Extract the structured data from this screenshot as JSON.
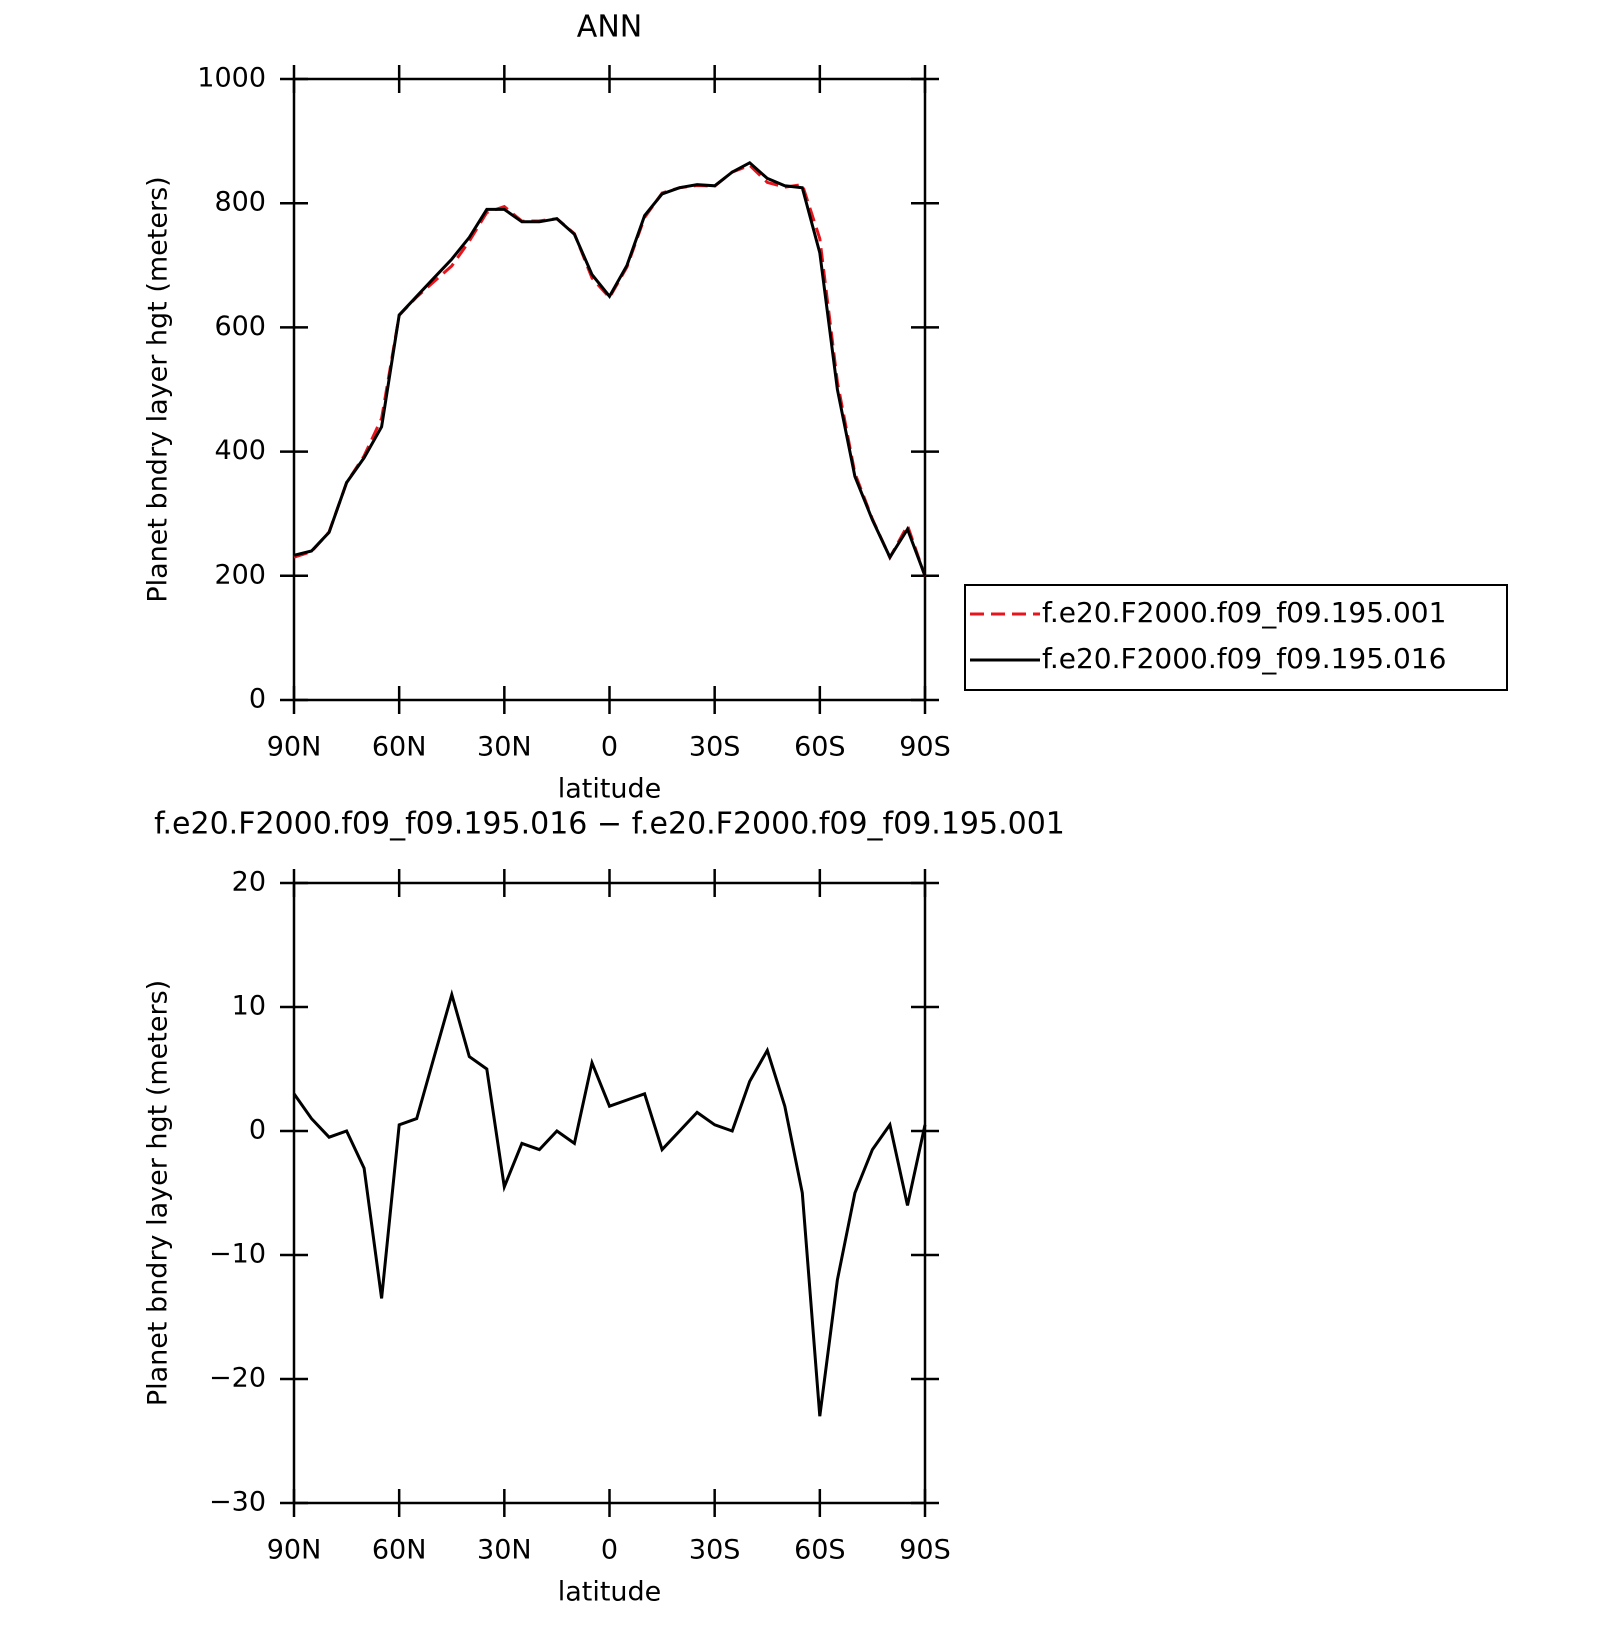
{
  "chart_data": [
    {
      "type": "line",
      "title": "ANN",
      "xlabel": "latitude",
      "ylabel": "Planet bndry layer hgt (meters)",
      "x": [
        90,
        85,
        80,
        75,
        70,
        65,
        60,
        55,
        50,
        45,
        40,
        35,
        30,
        25,
        20,
        15,
        10,
        5,
        0,
        -5,
        -10,
        -15,
        -20,
        -25,
        -30,
        -35,
        -40,
        -45,
        -50,
        -55,
        -60,
        -65,
        -70,
        -75,
        -80,
        -85,
        -90
      ],
      "series": [
        {
          "name": "f.e20.F2000.f09_f09.195.001",
          "color": "#e8141c",
          "style": "dashed",
          "values": [
            230,
            239,
            270.5,
            350,
            393,
            453.5,
            619.5,
            649,
            674,
            699,
            739,
            785,
            794.5,
            771,
            771.5,
            775,
            751,
            679.5,
            648,
            697.5,
            777,
            816.5,
            825,
            828.5,
            827.5,
            850,
            861,
            833.5,
            826,
            830,
            743,
            512,
            365,
            291.5,
            229.5,
            281,
            199.5
          ]
        },
        {
          "name": "f.e20.F2000.f09_f09.195.016",
          "color": "#000000",
          "style": "solid",
          "values": [
            233,
            240,
            270,
            350,
            390,
            440,
            620,
            650,
            680,
            710,
            745,
            790,
            790,
            770,
            770,
            775,
            750,
            685,
            650,
            700,
            780,
            815,
            825,
            830,
            828,
            850,
            865,
            840,
            828,
            825,
            720,
            500,
            360,
            290,
            230,
            275,
            200
          ]
        }
      ],
      "xlim": [
        90,
        -90
      ],
      "xticks": [
        {
          "value": 90,
          "label": "90N"
        },
        {
          "value": 60,
          "label": "60N"
        },
        {
          "value": 30,
          "label": "30N"
        },
        0,
        {
          "value": -30,
          "label": "30S"
        },
        {
          "value": -60,
          "label": "60S"
        },
        {
          "value": -90,
          "label": "90S"
        }
      ],
      "ylim": [
        0,
        1000
      ],
      "yticks": [
        0,
        200,
        400,
        600,
        800,
        1000
      ],
      "legend": "right"
    },
    {
      "type": "line",
      "title": "f.e20.F2000.f09_f09.195.016 − f.e20.F2000.f09_f09.195.001",
      "xlabel": "latitude",
      "ylabel": "Planet bndry layer hgt (meters)",
      "x": [
        90,
        85,
        80,
        75,
        70,
        65,
        60,
        55,
        50,
        45,
        40,
        35,
        30,
        25,
        20,
        15,
        10,
        5,
        0,
        -5,
        -10,
        -15,
        -20,
        -25,
        -30,
        -35,
        -40,
        -45,
        -50,
        -55,
        -60,
        -65,
        -70,
        -75,
        -80,
        -85,
        -90
      ],
      "color": "#000000",
      "values": [
        3,
        1,
        -0.5,
        0,
        -3,
        -13.5,
        0.5,
        1,
        6,
        11,
        6,
        5,
        -4.5,
        -1,
        -1.5,
        0,
        -1,
        5.5,
        2,
        2.5,
        3,
        -1.5,
        0,
        1.5,
        0.5,
        0,
        4,
        6.5,
        2,
        -5,
        -23,
        -12,
        -5,
        -1.5,
        0.5,
        -6,
        0.5
      ],
      "xlim": [
        90,
        -90
      ],
      "xticks": [
        {
          "value": 90,
          "label": "90N"
        },
        {
          "value": 60,
          "label": "60N"
        },
        {
          "value": 30,
          "label": "30N"
        },
        0,
        {
          "value": -30,
          "label": "30S"
        },
        {
          "value": -60,
          "label": "60S"
        },
        {
          "value": -90,
          "label": "90S"
        }
      ],
      "ylim": [
        -30,
        20
      ],
      "yticks": [
        {
          "value": -30,
          "label": "−30"
        },
        {
          "value": -20,
          "label": "−20"
        },
        {
          "value": -10,
          "label": "−10"
        },
        0,
        10,
        20
      ]
    }
  ]
}
